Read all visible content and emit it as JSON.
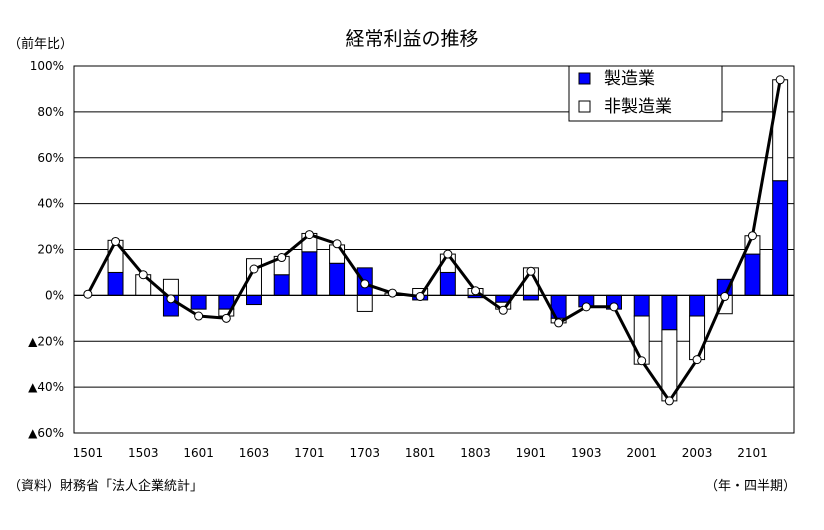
{
  "chart_data": {
    "type": "bar",
    "title": "経常利益の推移",
    "ylabel": "（前年比）",
    "xlabel": "（年・四半期）",
    "source": "（資料）財務省「法人企業統計」",
    "ylim": [
      -60,
      100
    ],
    "yticks": [
      {
        "value": 100,
        "label": "100%"
      },
      {
        "value": 80,
        "label": "80%"
      },
      {
        "value": 60,
        "label": "60%"
      },
      {
        "value": 40,
        "label": "40%"
      },
      {
        "value": 20,
        "label": "20%"
      },
      {
        "value": 0,
        "label": "0%"
      },
      {
        "value": -20,
        "label": "▲20%"
      },
      {
        "value": -40,
        "label": "▲40%"
      },
      {
        "value": -60,
        "label": "▲60%"
      }
    ],
    "categories": [
      "1501",
      "1502",
      "1503",
      "1504",
      "1601",
      "1602",
      "1603",
      "1604",
      "1701",
      "1702",
      "1703",
      "1704",
      "1801",
      "1802",
      "1803",
      "1804",
      "1901",
      "1902",
      "1903",
      "1904",
      "2001",
      "2002",
      "2003",
      "2004",
      "2101",
      "2102"
    ],
    "xtick_labels": [
      "1501",
      "1503",
      "1601",
      "1603",
      "1701",
      "1703",
      "1801",
      "1803",
      "1901",
      "1903",
      "2001",
      "2003",
      "2101"
    ],
    "legend": {
      "position": "top-right",
      "items": [
        "製造業",
        "非製造業"
      ]
    },
    "series": [
      {
        "name": "製造業",
        "type": "bar",
        "stacked": true,
        "color": "#0000ff",
        "values": [
          0,
          10,
          0,
          -9,
          -6,
          -6,
          -4,
          9,
          19,
          14,
          12,
          0,
          -2,
          10,
          -1,
          -3,
          -2,
          -10,
          -5,
          -6,
          -9,
          -15,
          -9,
          7,
          18,
          50
        ]
      },
      {
        "name": "非製造業",
        "type": "bar",
        "stacked": true,
        "color": "#ffffff",
        "values": [
          0,
          14,
          9,
          7,
          0,
          -3,
          16,
          8,
          8,
          8,
          -7,
          1,
          3,
          8,
          3,
          -3,
          12,
          -2,
          0,
          0,
          -21,
          -31,
          -19,
          -8,
          8,
          44
        ]
      },
      {
        "name": "",
        "type": "line",
        "color": "#000000",
        "values": [
          0.5,
          23.5,
          9,
          -1.5,
          -9,
          -10,
          11.5,
          16.5,
          26.5,
          22.5,
          5,
          1,
          -0.5,
          18,
          2,
          -6.5,
          10.5,
          -12,
          -5,
          -5,
          -28.5,
          -46,
          -28,
          -0.5,
          26,
          94
        ]
      }
    ]
  }
}
